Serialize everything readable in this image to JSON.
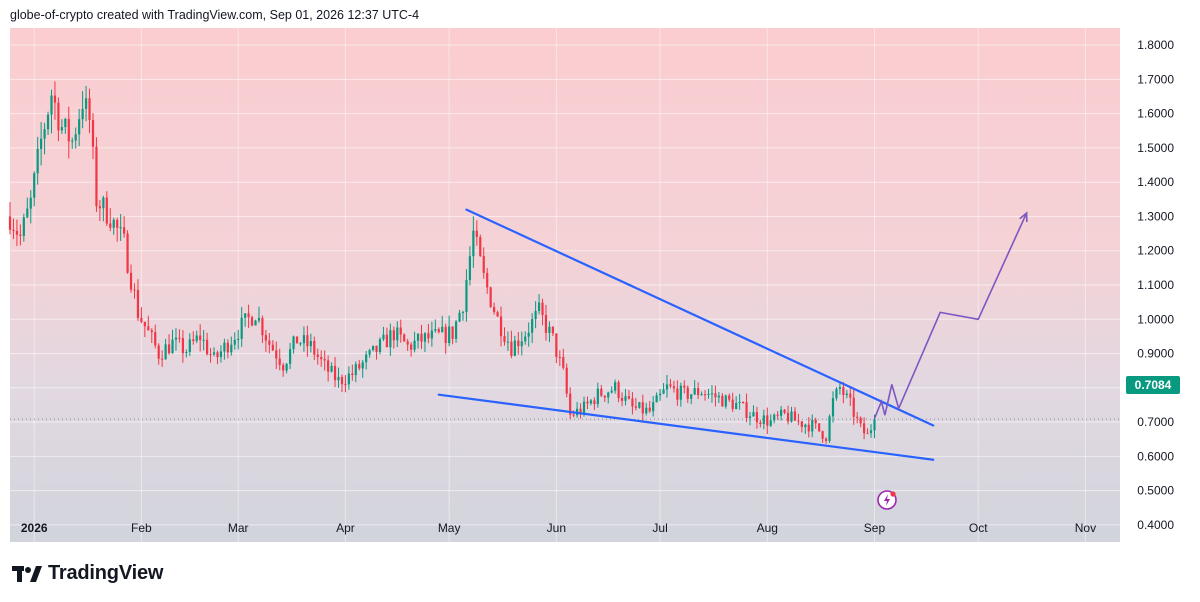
{
  "header": {
    "text": "globe-of-crypto created with TradingView.com, Sep 01, 2026 12:37 UTC-4"
  },
  "brand": {
    "name": "TradingView",
    "icon": "tradingview-logo-icon"
  },
  "last_price": "0.7084",
  "colors": {
    "up": "#089981",
    "down": "#f23645",
    "trendline": "#2962ff",
    "projection": "#7e57c2",
    "price_tag": "#089981"
  },
  "chart_data": {
    "type": "candlestick",
    "ylim": [
      0.35,
      1.85
    ],
    "y_ticks": [
      "0.4000",
      "0.5000",
      "0.6000",
      "0.7000",
      "0.8000",
      "0.9000",
      "1.0000",
      "1.1000",
      "1.2000",
      "1.3000",
      "1.4000",
      "1.5000",
      "1.6000",
      "1.7000",
      "1.8000"
    ],
    "x_ticks": [
      {
        "label": "2026",
        "date": "2026-01-01",
        "bold": true
      },
      {
        "label": "Feb",
        "date": "2026-02-01"
      },
      {
        "label": "Mar",
        "date": "2026-03-01"
      },
      {
        "label": "Apr",
        "date": "2026-04-01"
      },
      {
        "label": "May",
        "date": "2026-05-01"
      },
      {
        "label": "Jun",
        "date": "2026-06-01"
      },
      {
        "label": "Jul",
        "date": "2026-07-01"
      },
      {
        "label": "Aug",
        "date": "2026-08-01"
      },
      {
        "label": "Sep",
        "date": "2026-09-01"
      },
      {
        "label": "Oct",
        "date": "2026-10-01"
      },
      {
        "label": "Nov",
        "date": "2026-11-01"
      }
    ],
    "xlim": [
      "2025-12-25",
      "2026-11-11"
    ],
    "price_path": [
      [
        "2025-12-25",
        1.3
      ],
      [
        "2025-12-28",
        1.24
      ],
      [
        "2025-12-31",
        1.34
      ],
      [
        "2026-01-03",
        1.52
      ],
      [
        "2026-01-06",
        1.66
      ],
      [
        "2026-01-09",
        1.56
      ],
      [
        "2026-01-12",
        1.52
      ],
      [
        "2026-01-15",
        1.64
      ],
      [
        "2026-01-17",
        1.58
      ],
      [
        "2026-01-19",
        1.35
      ],
      [
        "2026-01-23",
        1.3
      ],
      [
        "2026-01-27",
        1.22
      ],
      [
        "2026-01-31",
        1.02
      ],
      [
        "2026-02-03",
        0.96
      ],
      [
        "2026-02-06",
        0.9
      ],
      [
        "2026-02-10",
        0.93
      ],
      [
        "2026-02-14",
        0.91
      ],
      [
        "2026-02-18",
        0.95
      ],
      [
        "2026-02-22",
        0.88
      ],
      [
        "2026-02-26",
        0.93
      ],
      [
        "2026-03-02",
        0.98
      ],
      [
        "2026-03-06",
        1.02
      ],
      [
        "2026-03-10",
        0.93
      ],
      [
        "2026-03-14",
        0.87
      ],
      [
        "2026-03-18",
        0.94
      ],
      [
        "2026-03-22",
        0.92
      ],
      [
        "2026-03-26",
        0.86
      ],
      [
        "2026-03-30",
        0.82
      ],
      [
        "2026-04-03",
        0.84
      ],
      [
        "2026-04-07",
        0.88
      ],
      [
        "2026-04-11",
        0.92
      ],
      [
        "2026-04-15",
        0.96
      ],
      [
        "2026-04-19",
        0.92
      ],
      [
        "2026-04-23",
        0.94
      ],
      [
        "2026-04-28",
        0.95
      ],
      [
        "2026-05-02",
        0.96
      ],
      [
        "2026-05-05",
        1.05
      ],
      [
        "2026-05-08",
        1.25
      ],
      [
        "2026-05-11",
        1.12
      ],
      [
        "2026-05-15",
        1.0
      ],
      [
        "2026-05-19",
        0.92
      ],
      [
        "2026-05-23",
        0.96
      ],
      [
        "2026-05-27",
        1.02
      ],
      [
        "2026-05-31",
        0.94
      ],
      [
        "2026-06-03",
        0.84
      ],
      [
        "2026-06-05",
        0.72
      ],
      [
        "2026-06-09",
        0.74
      ],
      [
        "2026-06-13",
        0.78
      ],
      [
        "2026-06-18",
        0.8
      ],
      [
        "2026-06-23",
        0.74
      ],
      [
        "2026-06-28",
        0.73
      ],
      [
        "2026-07-03",
        0.8
      ],
      [
        "2026-07-08",
        0.78
      ],
      [
        "2026-07-13",
        0.79
      ],
      [
        "2026-07-18",
        0.77
      ],
      [
        "2026-07-23",
        0.75
      ],
      [
        "2026-07-28",
        0.72
      ],
      [
        "2026-08-02",
        0.7
      ],
      [
        "2026-08-06",
        0.72
      ],
      [
        "2026-08-10",
        0.7
      ],
      [
        "2026-08-14",
        0.69
      ],
      [
        "2026-08-18",
        0.66
      ],
      [
        "2026-08-20",
        0.76
      ],
      [
        "2026-08-22",
        0.8
      ],
      [
        "2026-08-25",
        0.75
      ],
      [
        "2026-08-28",
        0.68
      ],
      [
        "2026-08-30",
        0.66
      ],
      [
        "2026-09-01",
        0.7084
      ]
    ],
    "trendlines": [
      {
        "name": "upper",
        "points": [
          [
            "2026-05-06",
            1.32
          ],
          [
            "2026-09-18",
            0.69
          ]
        ]
      },
      {
        "name": "lower",
        "points": [
          [
            "2026-04-28",
            0.78
          ],
          [
            "2026-09-18",
            0.59
          ]
        ]
      }
    ],
    "projection": [
      [
        "2026-09-01",
        0.71
      ],
      [
        "2026-09-03",
        0.76
      ],
      [
        "2026-09-04",
        0.72
      ],
      [
        "2026-09-06",
        0.81
      ],
      [
        "2026-09-08",
        0.74
      ],
      [
        "2026-09-20",
        1.02
      ],
      [
        "2026-10-01",
        1.0
      ],
      [
        "2026-10-15",
        1.31
      ]
    ],
    "projection_arrow": true,
    "last_price_line": 0.7084
  }
}
